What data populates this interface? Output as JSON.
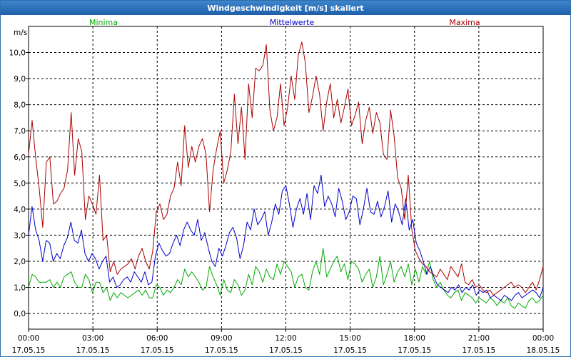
{
  "window_title": "Windgeschwindigkeit [m/s] skaliert",
  "chart_data": {
    "type": "line",
    "title": "Windgeschwindigkeit [m/s] skaliert",
    "ylabel": "m/s",
    "ylim": [
      -0.6,
      11
    ],
    "xlim": [
      0,
      24
    ],
    "grid": true,
    "yticks": [
      "0,0",
      "1,0",
      "2,0",
      "3,0",
      "4,0",
      "5,0",
      "6,0",
      "7,0",
      "8,0",
      "9,0",
      "10,0"
    ],
    "xticks": [
      {
        "time": "00:00",
        "date": "17.05.15"
      },
      {
        "time": "03:00",
        "date": "17.05.15"
      },
      {
        "time": "06:00",
        "date": "17.05.15"
      },
      {
        "time": "09:00",
        "date": "17.05.15"
      },
      {
        "time": "12:00",
        "date": "17.05.15"
      },
      {
        "time": "15:00",
        "date": "17.05.15"
      },
      {
        "time": "18:00",
        "date": "17.05.15"
      },
      {
        "time": "21:00",
        "date": "17.05.15"
      },
      {
        "time": "00:00",
        "date": "18.05.15"
      }
    ],
    "legend_placement": "top",
    "series": [
      {
        "name": "Minima",
        "color": "#00aa00",
        "values": [
          1.0,
          1.5,
          1.4,
          1.2,
          1.2,
          1.2,
          1.3,
          1.0,
          1.2,
          1.0,
          1.4,
          1.5,
          1.6,
          1.2,
          1.0,
          1.0,
          1.5,
          1.3,
          0.8,
          1.2,
          1.2,
          0.8,
          1.0,
          0.5,
          0.8,
          0.6,
          0.8,
          0.7,
          0.6,
          0.7,
          0.8,
          0.9,
          0.7,
          0.9,
          0.6,
          0.6,
          1.1,
          1.0,
          0.7,
          0.9,
          0.8,
          1.0,
          1.3,
          1.1,
          1.7,
          1.4,
          1.6,
          1.4,
          1.2,
          0.9,
          1.0,
          1.8,
          1.4,
          1.1,
          0.7,
          1.3,
          0.9,
          0.8,
          1.3,
          1.1,
          0.7,
          0.9,
          1.5,
          1.1,
          1.8,
          1.6,
          1.2,
          1.7,
          1.4,
          1.3,
          1.9,
          1.5,
          2.0,
          1.8,
          1.6,
          1.0,
          1.4,
          1.5,
          1.0,
          0.9,
          1.6,
          2.0,
          1.5,
          2.5,
          1.4,
          1.7,
          2.0,
          2.2,
          1.6,
          1.9,
          1.3,
          2.0,
          1.9,
          1.7,
          1.2,
          1.5,
          1.7,
          1.0,
          1.4,
          2.2,
          1.1,
          1.5,
          2.0,
          1.2,
          1.6,
          1.8,
          1.4,
          1.9,
          1.1,
          1.7,
          1.2,
          1.8,
          1.5,
          2.0,
          1.3,
          1.0,
          1.2,
          0.9,
          0.7,
          0.6,
          0.8,
          0.9,
          0.5,
          0.8,
          0.7,
          0.6,
          0.4,
          0.6,
          0.5,
          0.4,
          0.6,
          0.5,
          0.3,
          0.5,
          0.4,
          0.6,
          0.3,
          0.2,
          0.4,
          0.3,
          0.2,
          0.5,
          0.6,
          0.4,
          0.5,
          0.7
        ]
      },
      {
        "name": "Mittelwerte",
        "color": "#0000cc",
        "values": [
          3.0,
          4.1,
          3.2,
          2.8,
          2.0,
          2.8,
          2.7,
          2.0,
          2.3,
          2.1,
          2.6,
          2.9,
          3.5,
          2.8,
          2.7,
          3.2,
          2.3,
          2.0,
          2.3,
          2.1,
          1.7,
          2.0,
          2.2,
          1.2,
          1.4,
          1.0,
          1.1,
          1.3,
          1.4,
          1.2,
          1.6,
          1.4,
          1.2,
          1.6,
          1.1,
          1.2,
          2.2,
          2.7,
          2.4,
          2.2,
          2.3,
          2.7,
          3.0,
          2.6,
          3.2,
          3.5,
          3.2,
          3.0,
          3.6,
          2.8,
          3.1,
          2.5,
          2.0,
          1.8,
          2.5,
          2.2,
          2.6,
          3.1,
          3.3,
          2.9,
          2.1,
          2.6,
          3.5,
          3.2,
          4.0,
          3.4,
          3.6,
          3.9,
          3.0,
          3.5,
          4.2,
          3.8,
          4.7,
          4.9,
          4.2,
          3.3,
          4.0,
          4.4,
          3.8,
          4.6,
          3.6,
          4.9,
          4.6,
          5.3,
          4.1,
          4.5,
          4.2,
          3.7,
          4.8,
          4.3,
          3.6,
          3.9,
          4.5,
          4.4,
          3.4,
          4.0,
          4.8,
          3.9,
          3.8,
          4.3,
          3.7,
          4.1,
          4.7,
          3.5,
          4.2,
          3.9,
          3.4,
          4.4,
          3.2,
          3.6,
          2.7,
          2.4,
          2.0,
          1.5,
          1.8,
          1.4,
          1.1,
          1.0,
          0.9,
          0.8,
          1.0,
          0.9,
          1.1,
          0.8,
          1.0,
          0.9,
          1.1,
          0.7,
          0.9,
          0.8,
          0.9,
          0.6,
          0.7,
          0.6,
          0.5,
          0.7,
          0.6,
          0.5,
          0.7,
          0.8,
          0.6,
          0.7,
          0.8,
          0.9,
          0.8,
          0.6,
          1.0
        ]
      },
      {
        "name": "Maxima",
        "color": "#aa0000",
        "values": [
          6.1,
          7.4,
          6.0,
          4.8,
          3.3,
          5.8,
          6.0,
          4.2,
          4.3,
          4.6,
          4.8,
          5.5,
          7.7,
          5.3,
          6.7,
          6.2,
          3.6,
          4.5,
          4.2,
          3.8,
          5.3,
          2.8,
          3.0,
          1.6,
          2.0,
          1.5,
          1.7,
          1.8,
          1.9,
          2.1,
          1.7,
          2.2,
          2.5,
          2.0,
          1.7,
          2.4,
          3.9,
          4.2,
          3.6,
          3.8,
          4.5,
          4.8,
          5.8,
          4.9,
          7.2,
          5.6,
          6.4,
          5.8,
          6.4,
          6.7,
          6.1,
          3.9,
          5.5,
          6.3,
          7.0,
          5.0,
          5.5,
          6.2,
          8.4,
          6.5,
          7.9,
          5.9,
          8.8,
          7.5,
          9.4,
          9.3,
          9.5,
          10.3,
          7.8,
          7.0,
          7.5,
          8.8,
          7.2,
          7.9,
          9.1,
          8.2,
          9.9,
          10.4,
          9.6,
          7.7,
          8.3,
          9.1,
          8.4,
          7.0,
          8.1,
          8.8,
          7.5,
          8.2,
          7.3,
          7.9,
          8.6,
          7.2,
          7.6,
          8.1,
          6.5,
          7.4,
          7.9,
          6.9,
          7.7,
          7.3,
          6.1,
          5.9,
          7.8,
          6.8,
          5.2,
          4.8,
          3.6,
          5.3,
          3.2,
          2.4,
          2.1,
          1.9,
          1.8,
          1.6,
          1.5,
          1.4,
          1.7,
          1.5,
          1.3,
          1.8,
          1.6,
          1.4,
          1.9,
          1.2,
          1.1,
          1.3,
          1.0,
          1.1,
          0.9,
          0.8,
          0.9,
          0.7,
          0.8,
          0.9,
          1.0,
          1.1,
          1.2,
          1.0,
          1.1,
          1.0,
          0.8,
          1.0,
          1.2,
          0.9,
          1.3,
          1.8
        ]
      }
    ]
  }
}
